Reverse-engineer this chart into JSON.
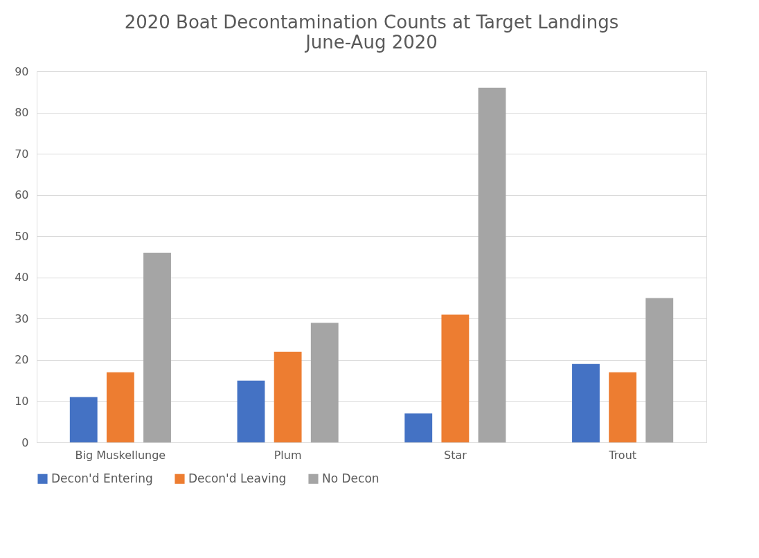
{
  "chart_data": {
    "type": "bar",
    "title": "2020 Boat Decontamination Counts at Target Landings",
    "subtitle": "June-Aug 2020",
    "categories": [
      "Big Muskellunge",
      "Plum",
      "Star",
      "Trout"
    ],
    "series": [
      {
        "name": "Decon'd Entering",
        "color": "#4472c4",
        "values": [
          11,
          15,
          7,
          19
        ]
      },
      {
        "name": "Decon'd Leaving",
        "color": "#ed7d31",
        "values": [
          17,
          22,
          31,
          17
        ]
      },
      {
        "name": "No Decon",
        "color": "#a5a5a5",
        "values": [
          46,
          29,
          86,
          35
        ]
      }
    ],
    "ylim": [
      0,
      90
    ],
    "yticks": [
      0,
      10,
      20,
      30,
      40,
      50,
      60,
      70,
      80,
      90
    ],
    "grid": "y",
    "legend": "bottom"
  }
}
